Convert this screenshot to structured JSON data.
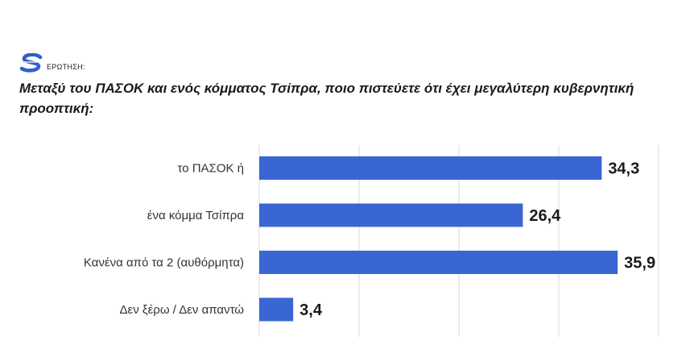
{
  "header": {
    "logo_icon": "s-logo-icon",
    "label": "ΕΡΩΤΗΣΗ:",
    "question": "Μεταξύ του ΠΑΣΟΚ και ενός κόμματος Τσίπρα, ποιο πιστεύετε ότι έχει μεγαλύτερη κυβερνητική προοπτική:"
  },
  "colors": {
    "bar": "#3a66d4",
    "grid": "#d9d9d9"
  },
  "chart_data": {
    "type": "bar",
    "orientation": "horizontal",
    "categories": [
      "το ΠΑΣΟΚ ή",
      "ένα κόμμα Τσίπρα",
      "Κανένα από τα 2 (αυθόρμητα)",
      "Δεν ξέρω / Δεν απαντώ"
    ],
    "values": [
      34.3,
      26.4,
      35.9,
      3.4
    ],
    "value_labels": [
      "34,3",
      "26,4",
      "35,9",
      "3,4"
    ],
    "xlim": [
      0,
      40
    ],
    "grid": true
  }
}
